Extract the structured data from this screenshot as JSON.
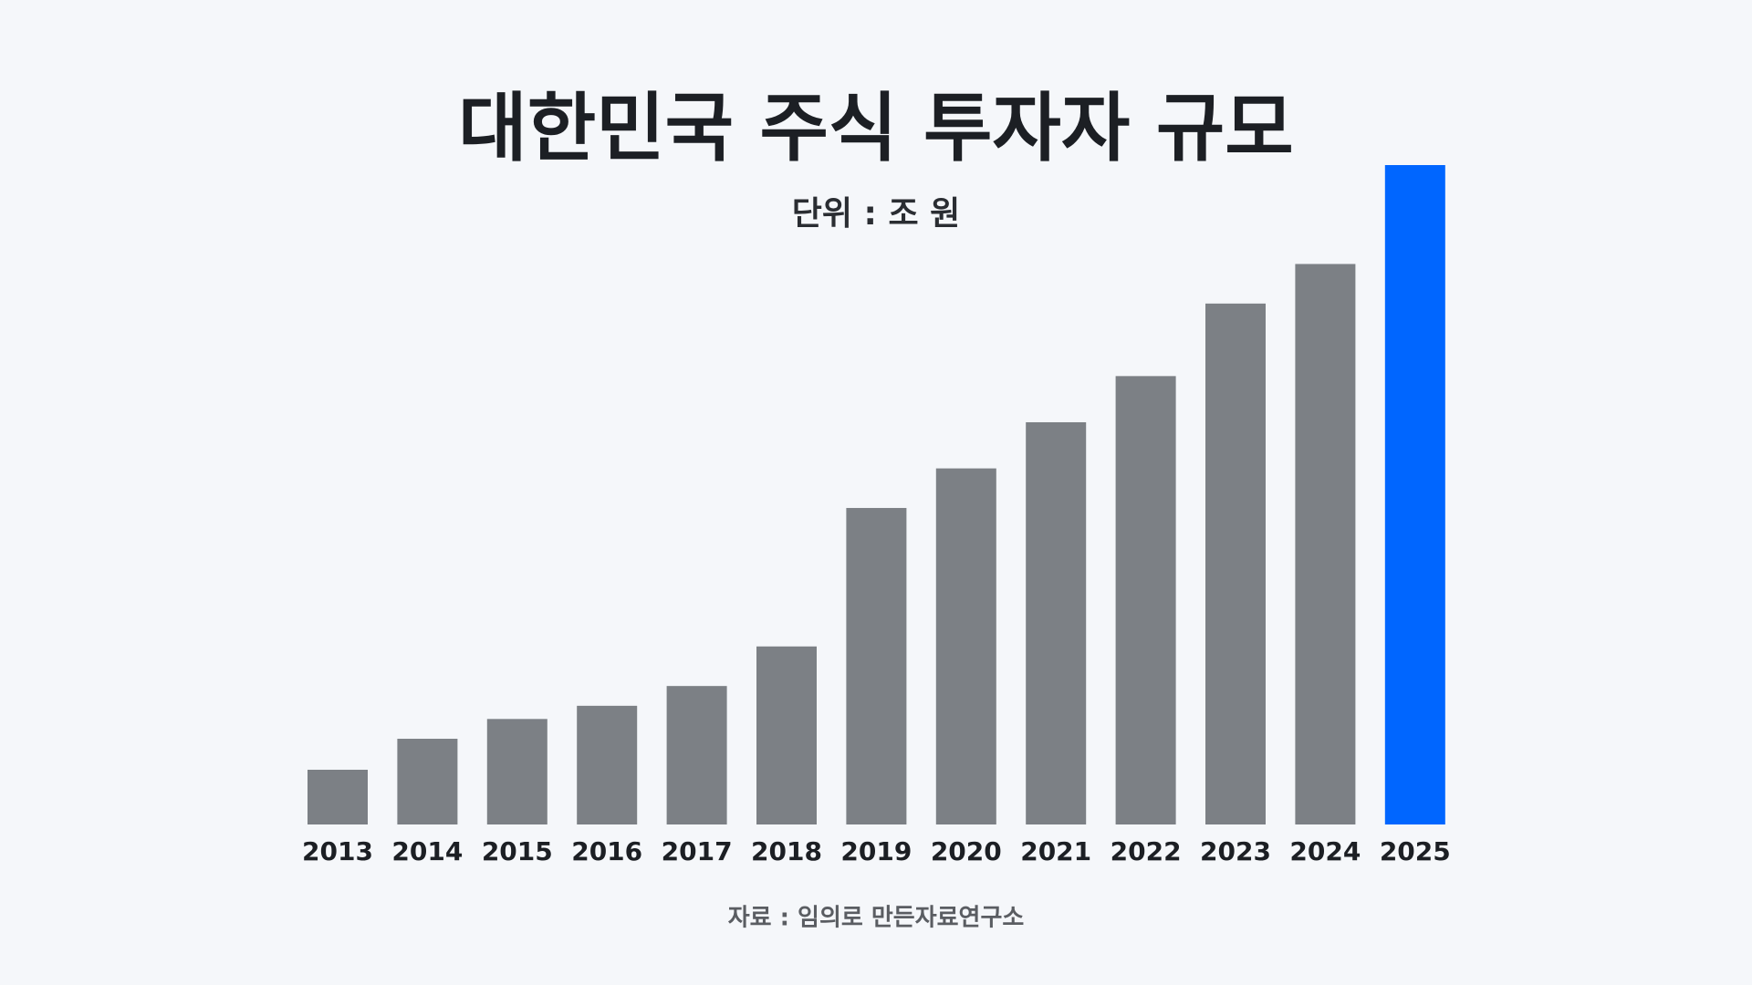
{
  "chart_data": {
    "type": "bar",
    "title": "대한민국 주식 투자자 규모",
    "subtitle": "단위 : 조 원",
    "source": "자료 : 임의로 만든자료연구소",
    "categories": [
      "2013",
      "2014",
      "2015",
      "2016",
      "2017",
      "2018",
      "2019",
      "2020",
      "2021",
      "2022",
      "2023",
      "2024",
      "2025"
    ],
    "values": [
      8.3,
      13,
      16,
      18,
      21,
      27,
      48,
      54,
      61,
      68,
      79,
      85,
      100
    ],
    "colors": [
      "#7c8085",
      "#7c8085",
      "#7c8085",
      "#7c8085",
      "#7c8085",
      "#7c8085",
      "#7c8085",
      "#7c8085",
      "#7c8085",
      "#7c8085",
      "#7c8085",
      "#7c8085",
      "#0066ff"
    ],
    "ylim": [
      0,
      100
    ]
  }
}
